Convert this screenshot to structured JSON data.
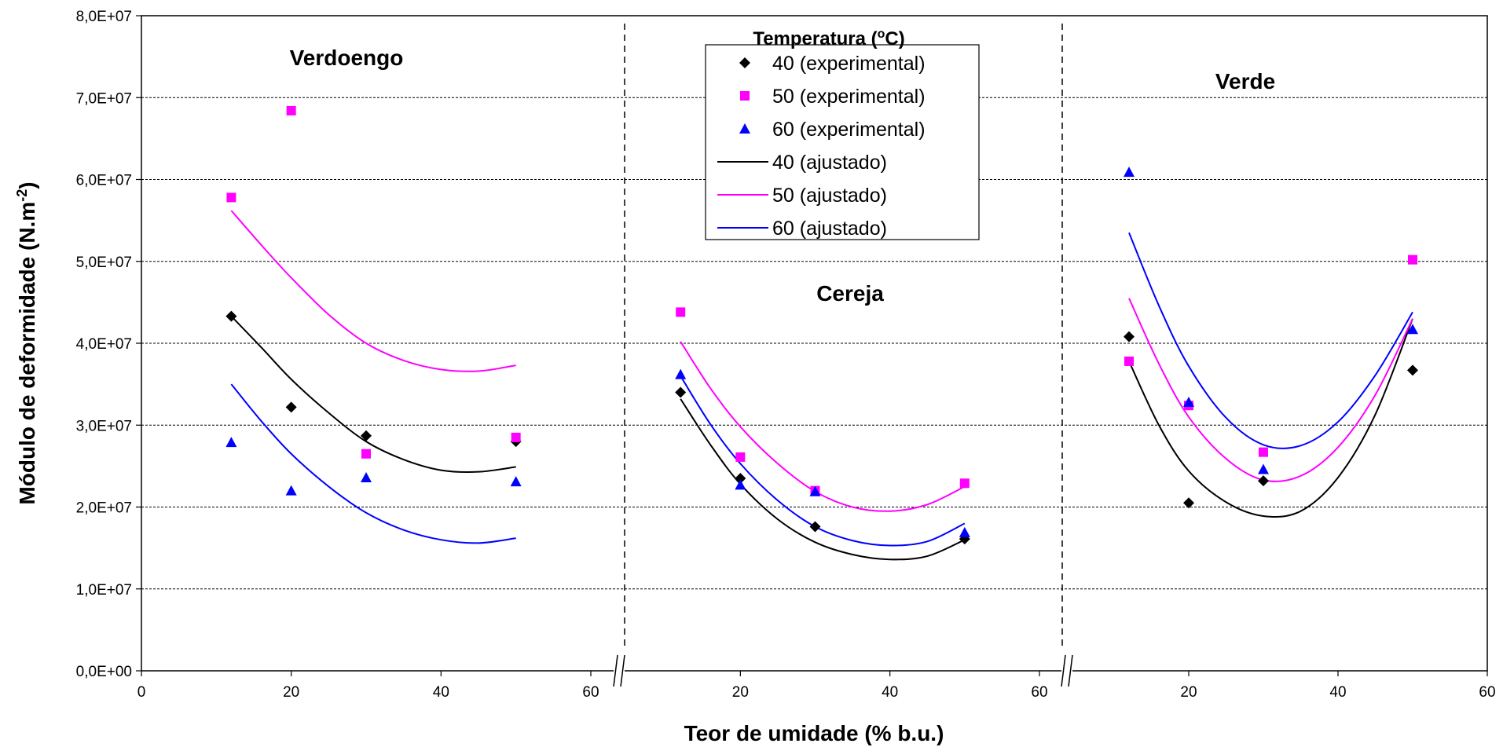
{
  "chart_data": {
    "type": "scatter",
    "ylabel": "Módulo de deformidade (N.m",
    "ylabel_sup": "-2",
    "ylabel_end": ")",
    "xlabel": "Teor de umidade (% b.u.)",
    "ylim": [
      0,
      80000000
    ],
    "y_ticks": [
      "0,0E+00",
      "1,0E+07",
      "2,0E+07",
      "3,0E+07",
      "4,0E+07",
      "5,0E+07",
      "6,0E+07",
      "7,0E+07",
      "8,0E+07"
    ],
    "y_tick_values": [
      0,
      10000000,
      20000000,
      30000000,
      40000000,
      50000000,
      60000000,
      70000000,
      80000000
    ],
    "grid": true,
    "legend": {
      "title": "Temperatura (",
      "title_sup": "o",
      "title_end": "C)",
      "entries": [
        "40 (experimental)",
        "50 (experimental)",
        "60 (experimental)",
        "40 (ajustado)",
        "50 (ajustado)",
        "60 (ajustado)"
      ],
      "placement": "top-center"
    },
    "colors": {
      "40": "#000000",
      "50": "#ff00ff",
      "60": "#0000ff"
    },
    "panels": [
      {
        "label": "Verdoengo",
        "x_ticks": [
          "0",
          "20",
          "40",
          "60"
        ],
        "experimental": {
          "40": [
            [
              12,
              43300000
            ],
            [
              20,
              32200000
            ],
            [
              30,
              28700000
            ],
            [
              50,
              28000000
            ]
          ],
          "50": [
            [
              12,
              57800000
            ],
            [
              20,
              68400000
            ],
            [
              30,
              26500000
            ],
            [
              50,
              28500000
            ]
          ],
          "60": [
            [
              12,
              27900000
            ],
            [
              20,
              22000000
            ],
            [
              30,
              23600000
            ],
            [
              50,
              23100000
            ]
          ]
        },
        "fitted": {
          "40": [
            [
              12,
              43300000
            ],
            [
              16,
              39500000
            ],
            [
              20,
              35600000
            ],
            [
              25,
              31500000
            ],
            [
              30,
              28000000
            ],
            [
              35,
              25800000
            ],
            [
              40,
              24500000
            ],
            [
              45,
              24300000
            ],
            [
              50,
              24900000
            ]
          ],
          "50": [
            [
              12,
              56200000
            ],
            [
              16,
              52000000
            ],
            [
              20,
              48000000
            ],
            [
              25,
              43500000
            ],
            [
              30,
              40000000
            ],
            [
              35,
              37900000
            ],
            [
              40,
              36800000
            ],
            [
              45,
              36600000
            ],
            [
              50,
              37300000
            ]
          ],
          "60": [
            [
              12,
              35000000
            ],
            [
              16,
              30500000
            ],
            [
              20,
              26500000
            ],
            [
              25,
              22500000
            ],
            [
              30,
              19300000
            ],
            [
              35,
              17200000
            ],
            [
              40,
              16000000
            ],
            [
              45,
              15600000
            ],
            [
              50,
              16200000
            ]
          ]
        }
      },
      {
        "label": "Cereja",
        "x_ticks": [
          "20",
          "40",
          "60"
        ],
        "experimental": {
          "40": [
            [
              12,
              34000000
            ],
            [
              20,
              23500000
            ],
            [
              30,
              17600000
            ],
            [
              50,
              16100000
            ]
          ],
          "50": [
            [
              12,
              43800000
            ],
            [
              20,
              26100000
            ],
            [
              30,
              22000000
            ],
            [
              50,
              22900000
            ]
          ],
          "60": [
            [
              12,
              36200000
            ],
            [
              20,
              22700000
            ],
            [
              30,
              21900000
            ],
            [
              50,
              16900000
            ]
          ]
        },
        "fitted": {
          "40": [
            [
              12,
              33200000
            ],
            [
              16,
              27600000
            ],
            [
              20,
              22800000
            ],
            [
              25,
              18500000
            ],
            [
              30,
              15700000
            ],
            [
              35,
              14200000
            ],
            [
              40,
              13600000
            ],
            [
              45,
              14000000
            ],
            [
              50,
              16000000
            ]
          ],
          "50": [
            [
              12,
              40200000
            ],
            [
              16,
              34500000
            ],
            [
              20,
              29800000
            ],
            [
              25,
              25300000
            ],
            [
              30,
              21900000
            ],
            [
              35,
              20000000
            ],
            [
              40,
              19500000
            ],
            [
              45,
              20300000
            ],
            [
              50,
              22500000
            ]
          ],
          "60": [
            [
              12,
              36000000
            ],
            [
              16,
              30100000
            ],
            [
              20,
              25300000
            ],
            [
              25,
              20800000
            ],
            [
              30,
              17600000
            ],
            [
              35,
              15900000
            ],
            [
              40,
              15300000
            ],
            [
              45,
              15800000
            ],
            [
              50,
              18000000
            ]
          ]
        }
      },
      {
        "label": "Verde",
        "x_ticks": [
          "20",
          "40",
          "60"
        ],
        "experimental": {
          "40": [
            [
              12,
              40800000
            ],
            [
              20,
              20500000
            ],
            [
              30,
              23200000
            ],
            [
              50,
              36700000
            ]
          ],
          "50": [
            [
              12,
              37800000
            ],
            [
              20,
              32400000
            ],
            [
              30,
              26700000
            ],
            [
              50,
              50200000
            ]
          ],
          "60": [
            [
              12,
              60900000
            ],
            [
              20,
              32800000
            ],
            [
              30,
              24600000
            ],
            [
              50,
              41700000
            ]
          ]
        },
        "fitted": {
          "40": [
            [
              12,
              37800000
            ],
            [
              16,
              30000000
            ],
            [
              20,
              24400000
            ],
            [
              25,
              20600000
            ],
            [
              30,
              18900000
            ],
            [
              35,
              19500000
            ],
            [
              40,
              23600000
            ],
            [
              45,
              31300000
            ],
            [
              50,
              43000000
            ]
          ],
          "50": [
            [
              12,
              45500000
            ],
            [
              16,
              37500000
            ],
            [
              20,
              31000000
            ],
            [
              25,
              25900000
            ],
            [
              30,
              23300000
            ],
            [
              35,
              23800000
            ],
            [
              40,
              27300000
            ],
            [
              45,
              33700000
            ],
            [
              50,
              43000000
            ]
          ],
          "60": [
            [
              12,
              53500000
            ],
            [
              16,
              44600000
            ],
            [
              20,
              37200000
            ],
            [
              25,
              30900000
            ],
            [
              30,
              27600000
            ],
            [
              35,
              27500000
            ],
            [
              40,
              30400000
            ],
            [
              45,
              36100000
            ],
            [
              50,
              43800000
            ]
          ]
        }
      }
    ]
  }
}
